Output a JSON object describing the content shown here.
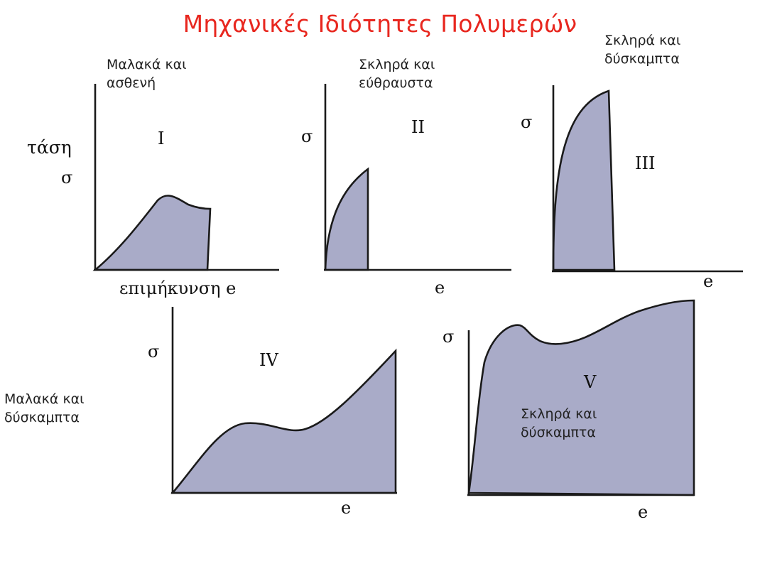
{
  "title": "Μηχανικές Ιδιότητες Πολυμερών",
  "notes": {
    "soft_weak": "Μαλακά και\nασθενή",
    "hard_brittle": "Σκληρά και\nεύθραυστα",
    "hard_stiff_top": "Σκληρά και\nδύσκαμπτα",
    "soft_stiff": "Μαλακά και\nδύσκαμπτα",
    "hard_stiff_inner": "Σκληρά και\nδύσκαμπτα"
  },
  "labels": {
    "stress_word": "τάση",
    "sigma": "σ",
    "elongation": "επιμήκυνση e",
    "e": "e"
  },
  "numerals": [
    "I",
    "II",
    "III",
    "IV",
    "V"
  ],
  "colors": {
    "fill": "#a9abc8",
    "title": "#e8271f"
  }
}
